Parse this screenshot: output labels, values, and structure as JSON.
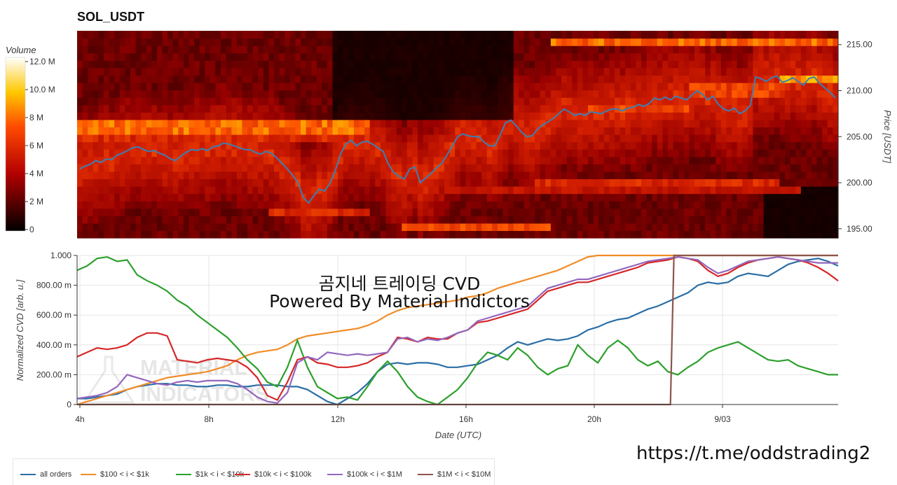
{
  "title": "SOL_USDT",
  "watermark_line1": "곰지네 트레이딩 CVD",
  "watermark_line2": "Powered By Material Indictors",
  "logo_text": [
    "MATERIAL",
    "INDICATORS"
  ],
  "url": "https://t.me/oddstrading2",
  "chart_data": [
    {
      "type": "heatmap",
      "title": "SOL_USDT",
      "colorbar_label": "Volume",
      "colorbar_ticks": [
        "12.0 M",
        "10.0 M",
        "8 M",
        "6 M",
        "4 M",
        "2 M",
        "0"
      ],
      "colorbar_range": [
        0,
        12
      ],
      "ylabel": "Price [USDT]",
      "y_ticks": [
        "215.00",
        "210.00",
        "205.00",
        "200.00",
        "195.00"
      ],
      "ylim": [
        194,
        216.5
      ],
      "price_line_color": "#3b7fb6",
      "price": [
        201.5,
        201.8,
        202.0,
        202.4,
        202.2,
        202.6,
        202.5,
        203.0,
        203.2,
        203.5,
        203.8,
        203.9,
        203.6,
        203.4,
        203.5,
        203.2,
        203.0,
        202.6,
        202.4,
        202.9,
        203.3,
        203.6,
        203.5,
        203.7,
        203.5,
        203.9,
        204.0,
        204.3,
        204.2,
        204.0,
        203.8,
        203.6,
        203.6,
        203.3,
        203.1,
        203.4,
        203.2,
        202.7,
        202.1,
        201.5,
        200.8,
        200.0,
        198.4,
        197.8,
        198.6,
        199.3,
        199.1,
        199.9,
        201.3,
        203.1,
        204.2,
        204.6,
        204.0,
        204.4,
        204.5,
        204.2,
        203.8,
        203.4,
        202.0,
        201.1,
        200.7,
        200.4,
        201.5,
        201.7,
        200.0,
        200.5,
        201.0,
        201.6,
        202.1,
        203.0,
        204.0,
        205.0,
        205.3,
        205.1,
        205.0,
        205.0,
        204.4,
        204.0,
        204.0,
        205.2,
        206.5,
        206.8,
        206.2,
        205.5,
        205.0,
        205.1,
        205.8,
        206.3,
        206.6,
        207.0,
        207.5,
        208.0,
        207.7,
        207.3,
        207.5,
        207.3,
        207.7,
        207.6,
        207.5,
        207.8,
        208.0,
        208.0,
        207.8,
        208.1,
        208.2,
        208.5,
        208.3,
        208.6,
        209.2,
        209.0,
        209.3,
        209.0,
        209.4,
        209.2,
        209.0,
        209.5,
        210.0,
        209.6,
        209.0,
        209.4,
        208.5,
        208.0,
        207.8,
        208.1,
        207.5,
        207.8,
        208.4,
        211.5,
        211.3,
        211.0,
        211.4,
        211.6,
        210.9,
        211.1,
        211.4,
        211.0,
        210.6,
        211.3,
        211.5,
        210.8,
        210.3,
        209.8,
        209.2
      ],
      "bands": [
        {
          "price_lo": 214.5,
          "price_hi": 215.5,
          "from": 0.62,
          "to": 1.0,
          "level": 9
        },
        {
          "price_lo": 205.5,
          "price_hi": 206.5,
          "from": 0.0,
          "to": 0.38,
          "level": 9
        },
        {
          "price_lo": 204.5,
          "price_hi": 205.5,
          "from": 0.0,
          "to": 0.35,
          "level": 7
        },
        {
          "price_lo": 199.5,
          "price_hi": 200.5,
          "from": 0.6,
          "to": 0.92,
          "level": 7
        },
        {
          "price_lo": 198.5,
          "price_hi": 199.5,
          "from": 0.48,
          "to": 0.95,
          "level": 6
        },
        {
          "price_lo": 196.5,
          "price_hi": 197.5,
          "from": 0.25,
          "to": 0.38,
          "level": 7
        },
        {
          "price_lo": 195.0,
          "price_hi": 196.0,
          "from": 0.42,
          "to": 0.62,
          "level": 8
        },
        {
          "price_lo": 210.5,
          "price_hi": 211.5,
          "from": 0.92,
          "to": 1.0,
          "level": 10
        },
        {
          "price_lo": 209.5,
          "price_hi": 210.5,
          "from": 0.8,
          "to": 0.92,
          "level": 8
        },
        {
          "price_lo": 207.5,
          "price_hi": 208.5,
          "from": 0.67,
          "to": 0.8,
          "level": 8
        }
      ]
    },
    {
      "type": "line",
      "xlabel": "Date (UTC)",
      "ylabel": "Normalized CVD [arb. u.]",
      "x_ticks": [
        "4h",
        "8h",
        "12h",
        "16h",
        "20h",
        "9/03"
      ],
      "y_ticks": [
        "1.000",
        "800.00 m",
        "600.00 m",
        "400.00 m",
        "200.00 m",
        "0"
      ],
      "ylim": [
        0,
        1.0
      ],
      "x_range": [
        "4h",
        "9/03 3.6h"
      ],
      "series": [
        {
          "name": "all orders",
          "color": "#2b6ea5",
          "values": [
            0.04,
            0.04,
            0.05,
            0.06,
            0.07,
            0.1,
            0.12,
            0.13,
            0.14,
            0.14,
            0.13,
            0.13,
            0.12,
            0.12,
            0.13,
            0.13,
            0.12,
            0.12,
            0.13,
            0.13,
            0.13,
            0.12,
            0.12,
            0.1,
            0.06,
            0.02,
            0.0,
            0.04,
            0.08,
            0.14,
            0.22,
            0.27,
            0.28,
            0.27,
            0.28,
            0.28,
            0.27,
            0.25,
            0.25,
            0.26,
            0.27,
            0.3,
            0.33,
            0.38,
            0.42,
            0.4,
            0.42,
            0.44,
            0.43,
            0.44,
            0.46,
            0.5,
            0.52,
            0.55,
            0.57,
            0.58,
            0.61,
            0.64,
            0.66,
            0.69,
            0.72,
            0.75,
            0.8,
            0.82,
            0.81,
            0.82,
            0.86,
            0.88,
            0.87,
            0.86,
            0.9,
            0.94,
            0.96,
            0.97,
            0.98,
            0.96,
            0.93
          ]
        },
        {
          "name": "$100 < i < $1k",
          "color": "#f28c28",
          "values": [
            0.0,
            0.02,
            0.04,
            0.06,
            0.08,
            0.1,
            0.12,
            0.14,
            0.16,
            0.18,
            0.19,
            0.2,
            0.21,
            0.22,
            0.24,
            0.26,
            0.3,
            0.33,
            0.35,
            0.36,
            0.37,
            0.4,
            0.44,
            0.46,
            0.47,
            0.48,
            0.49,
            0.5,
            0.51,
            0.53,
            0.56,
            0.6,
            0.63,
            0.65,
            0.66,
            0.67,
            0.68,
            0.69,
            0.7,
            0.72,
            0.73,
            0.75,
            0.78,
            0.8,
            0.82,
            0.84,
            0.86,
            0.88,
            0.9,
            0.93,
            0.96,
            0.99,
            1.0,
            1.0,
            1.0,
            1.0,
            1.0,
            1.0,
            1.0,
            1.0,
            1.0,
            1.0,
            1.0,
            1.0,
            1.0,
            1.0,
            1.0,
            1.0,
            1.0,
            1.0,
            1.0,
            1.0,
            1.0,
            1.0,
            1.0,
            1.0,
            1.0
          ]
        },
        {
          "name": "$1k < i < $10k",
          "color": "#2ca02c",
          "values": [
            0.9,
            0.93,
            0.98,
            0.99,
            0.96,
            0.97,
            0.87,
            0.83,
            0.8,
            0.76,
            0.7,
            0.66,
            0.6,
            0.55,
            0.5,
            0.45,
            0.38,
            0.3,
            0.24,
            0.15,
            0.12,
            0.25,
            0.43,
            0.25,
            0.12,
            0.08,
            0.04,
            0.05,
            0.03,
            0.12,
            0.22,
            0.29,
            0.22,
            0.12,
            0.05,
            0.02,
            0.0,
            0.05,
            0.1,
            0.18,
            0.28,
            0.35,
            0.33,
            0.3,
            0.38,
            0.33,
            0.25,
            0.2,
            0.24,
            0.26,
            0.4,
            0.33,
            0.28,
            0.38,
            0.43,
            0.38,
            0.3,
            0.26,
            0.29,
            0.22,
            0.2,
            0.25,
            0.29,
            0.35,
            0.38,
            0.4,
            0.42,
            0.38,
            0.34,
            0.3,
            0.29,
            0.3,
            0.26,
            0.24,
            0.22,
            0.2,
            0.2
          ]
        },
        {
          "name": "$10k < i < $100k",
          "color": "#d62728",
          "values": [
            0.32,
            0.35,
            0.38,
            0.37,
            0.38,
            0.4,
            0.45,
            0.48,
            0.48,
            0.46,
            0.3,
            0.29,
            0.28,
            0.3,
            0.31,
            0.3,
            0.29,
            0.25,
            0.18,
            0.06,
            0.03,
            0.15,
            0.3,
            0.32,
            0.28,
            0.27,
            0.25,
            0.25,
            0.26,
            0.28,
            0.32,
            0.35,
            0.45,
            0.44,
            0.42,
            0.45,
            0.44,
            0.44,
            0.48,
            0.5,
            0.55,
            0.56,
            0.58,
            0.6,
            0.62,
            0.64,
            0.7,
            0.76,
            0.78,
            0.8,
            0.82,
            0.82,
            0.84,
            0.86,
            0.88,
            0.9,
            0.92,
            0.95,
            0.96,
            0.97,
            0.99,
            0.98,
            0.96,
            0.9,
            0.86,
            0.88,
            0.92,
            0.95,
            0.97,
            0.98,
            0.99,
            0.98,
            0.97,
            0.95,
            0.92,
            0.88,
            0.83
          ]
        },
        {
          "name": "$100k < i < $1M",
          "color": "#9467bd",
          "values": [
            0.04,
            0.05,
            0.06,
            0.08,
            0.12,
            0.2,
            0.18,
            0.16,
            0.14,
            0.13,
            0.15,
            0.16,
            0.15,
            0.16,
            0.16,
            0.16,
            0.14,
            0.1,
            0.05,
            0.02,
            0.01,
            0.08,
            0.28,
            0.32,
            0.3,
            0.35,
            0.34,
            0.33,
            0.34,
            0.33,
            0.34,
            0.35,
            0.44,
            0.45,
            0.42,
            0.44,
            0.43,
            0.45,
            0.48,
            0.5,
            0.56,
            0.58,
            0.6,
            0.62,
            0.64,
            0.66,
            0.72,
            0.78,
            0.8,
            0.82,
            0.84,
            0.84,
            0.86,
            0.88,
            0.9,
            0.92,
            0.94,
            0.96,
            0.97,
            0.98,
            0.99,
            0.98,
            0.97,
            0.92,
            0.88,
            0.9,
            0.93,
            0.96,
            0.97,
            0.98,
            0.99,
            0.98,
            0.97,
            0.96,
            0.95,
            0.95,
            0.95
          ]
        },
        {
          "name": "$1M < i < $10M",
          "color": "#8c564b",
          "values": [
            0,
            0,
            0,
            0,
            0,
            0,
            0,
            0,
            0,
            0,
            0,
            0,
            0,
            0,
            0,
            0,
            0,
            0,
            0,
            0,
            0,
            0,
            0,
            0,
            0,
            0,
            0,
            0,
            0,
            0,
            0,
            0,
            0,
            0,
            0,
            0,
            0,
            0,
            0,
            0,
            0,
            0,
            0,
            0,
            0,
            0,
            0,
            0,
            0,
            0,
            0,
            0,
            0,
            0,
            0,
            0,
            0,
            0,
            0,
            0,
            0,
            1,
            1,
            1,
            1,
            1,
            1,
            1,
            1,
            1,
            1,
            1,
            1,
            1,
            1,
            1,
            1
          ]
        }
      ]
    }
  ]
}
